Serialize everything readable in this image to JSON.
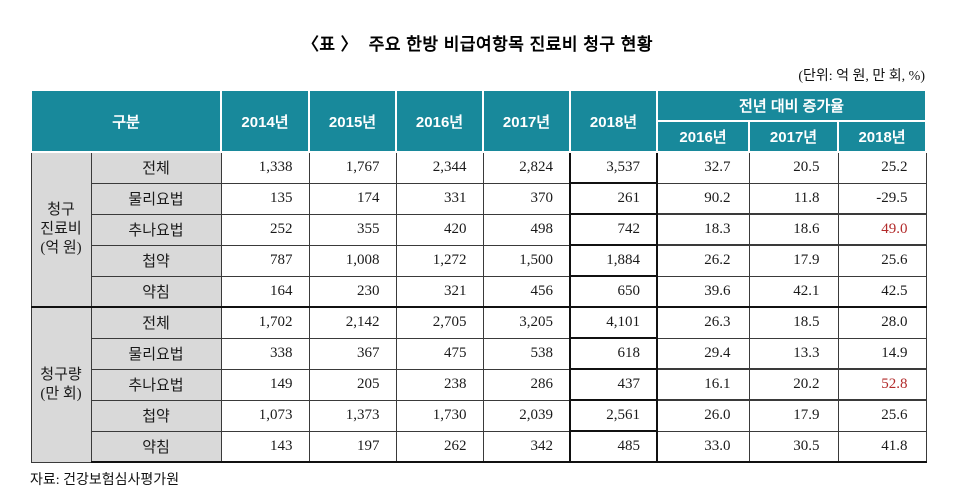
{
  "title": "〈표 〉  주요 한방 비급여항목 진료비 청구 현황",
  "unit_note": "(단위: 억 원, 만 회, %)",
  "source": "자료: 건강보험심사평가원",
  "colors": {
    "header_teal": "#18899B",
    "label_gray": "#D9D9D9",
    "highlight_red": "#B22A2A"
  },
  "chart_data": {
    "type": "table",
    "title": "주요 한방 비급여항목 진료비 청구 현황",
    "unit": "억 원, 만 회, %",
    "header": {
      "gubun": "구분",
      "years": [
        "2014년",
        "2015년",
        "2016년",
        "2017년",
        "2018년"
      ],
      "growth_group": "전년 대비 증가율",
      "growth_years": [
        "2016년",
        "2017년",
        "2018년"
      ]
    },
    "groups": [
      {
        "label": "청구\n진료비\n(억 원)",
        "rows": [
          {
            "item": "전체",
            "values": [
              "1,338",
              "1,767",
              "2,344",
              "2,824",
              "3,537"
            ],
            "growth": [
              "32.7",
              "20.5",
              "25.2"
            ],
            "highlight_last": false
          },
          {
            "item": "물리요법",
            "values": [
              "135",
              "174",
              "331",
              "370",
              "261"
            ],
            "growth": [
              "90.2",
              "11.8",
              "-29.5"
            ],
            "highlight_last": false
          },
          {
            "item": "추나요법",
            "values": [
              "252",
              "355",
              "420",
              "498",
              "742"
            ],
            "growth": [
              "18.3",
              "18.6",
              "49.0"
            ],
            "highlight_last": true
          },
          {
            "item": "첩약",
            "values": [
              "787",
              "1,008",
              "1,272",
              "1,500",
              "1,884"
            ],
            "growth": [
              "26.2",
              "17.9",
              "25.6"
            ],
            "highlight_last": false
          },
          {
            "item": "약침",
            "values": [
              "164",
              "230",
              "321",
              "456",
              "650"
            ],
            "growth": [
              "39.6",
              "42.1",
              "42.5"
            ],
            "highlight_last": false
          }
        ]
      },
      {
        "label": "청구량\n(만 회)",
        "rows": [
          {
            "item": "전체",
            "values": [
              "1,702",
              "2,142",
              "2,705",
              "3,205",
              "4,101"
            ],
            "growth": [
              "26.3",
              "18.5",
              "28.0"
            ],
            "highlight_last": false
          },
          {
            "item": "물리요법",
            "values": [
              "338",
              "367",
              "475",
              "538",
              "618"
            ],
            "growth": [
              "29.4",
              "13.3",
              "14.9"
            ],
            "highlight_last": false
          },
          {
            "item": "추나요법",
            "values": [
              "149",
              "205",
              "238",
              "286",
              "437"
            ],
            "growth": [
              "16.1",
              "20.2",
              "52.8"
            ],
            "highlight_last": true
          },
          {
            "item": "첩약",
            "values": [
              "1,073",
              "1,373",
              "1,730",
              "2,039",
              "2,561"
            ],
            "growth": [
              "26.0",
              "17.9",
              "25.6"
            ],
            "highlight_last": false
          },
          {
            "item": "약침",
            "values": [
              "143",
              "197",
              "262",
              "342",
              "485"
            ],
            "growth": [
              "33.0",
              "30.5",
              "41.8"
            ],
            "highlight_last": false
          }
        ]
      }
    ]
  }
}
